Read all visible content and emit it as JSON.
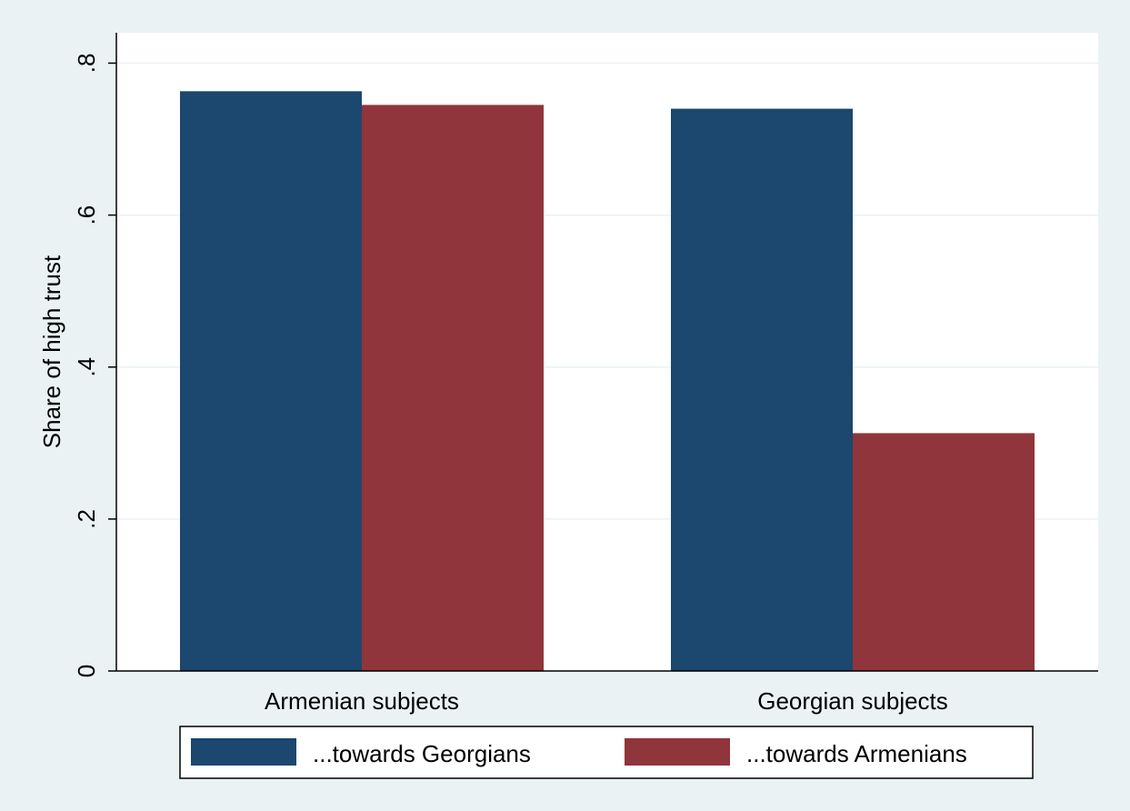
{
  "chart_data": {
    "type": "bar",
    "title": "",
    "xlabel": "",
    "ylabel": "Share of high trust",
    "ylim": [
      0,
      0.84
    ],
    "yticks": [
      0,
      0.2,
      0.4,
      0.6,
      0.8
    ],
    "ytick_labels": [
      "0",
      ".2",
      ".4",
      ".6",
      ".8"
    ],
    "grid": true,
    "legend_position": "bottom",
    "categories": [
      "Armenian subjects",
      "Georgian subjects"
    ],
    "series": [
      {
        "name": "...towards Georgians",
        "color": "#1c476e",
        "values": [
          0.763,
          0.74
        ]
      },
      {
        "name": "...towards Armenians",
        "color": "#90353b",
        "values": [
          0.745,
          0.313
        ]
      }
    ]
  }
}
